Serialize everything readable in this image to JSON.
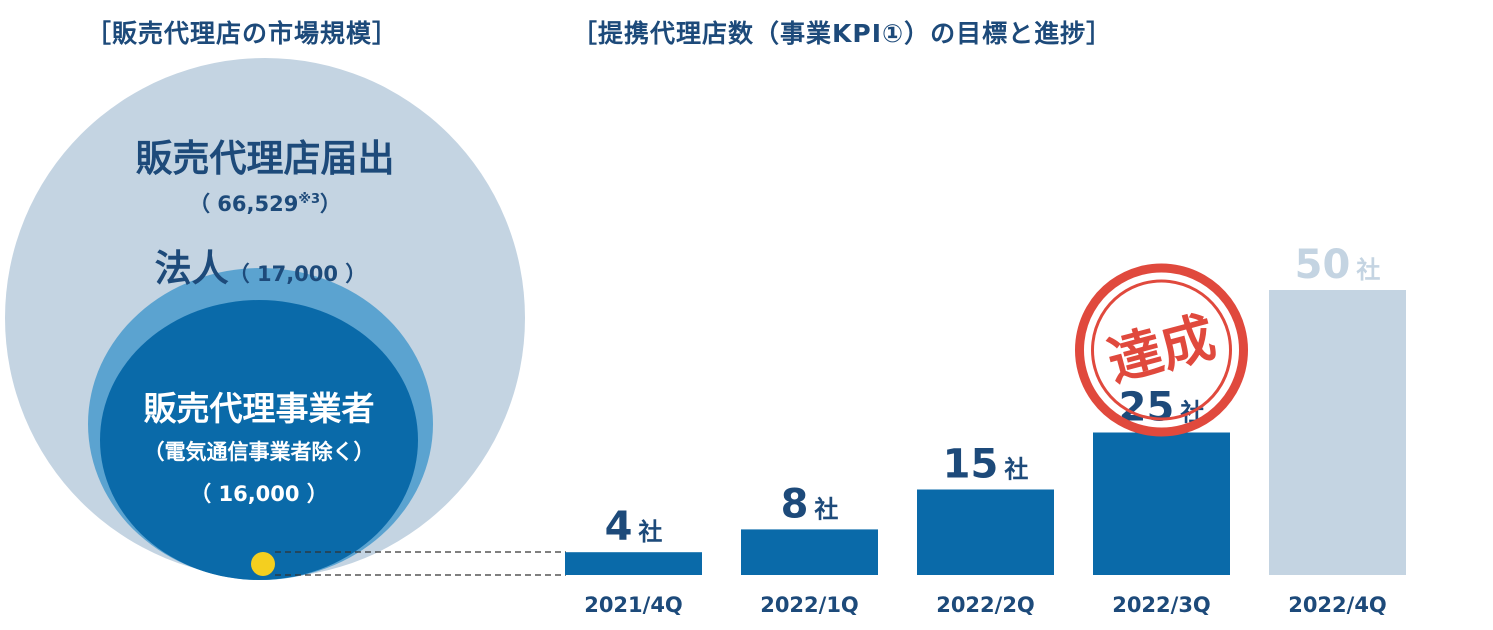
{
  "left_panel": {
    "title": "［販売代理店の市場規模］",
    "outer_circle": {
      "label": "販売代理店届出",
      "value": "（ 66,529",
      "note": "※3",
      "value_close": "）"
    },
    "mid_circle": {
      "label": "法人",
      "value": "（ 17,000 ）"
    },
    "inner_circle": {
      "label": "販売代理事業者",
      "sub": "（電気通信事業者除く）",
      "value": "（ 16,000 ）"
    }
  },
  "colors": {
    "bar_actual": "#0a6aa9",
    "bar_target": "#c4d4e2",
    "label_actual": "#1d4a7a",
    "label_target": "#c4d4e2",
    "stamp": "#e0493d",
    "marker": "#f4cf1f"
  },
  "chart_data": {
    "type": "bar",
    "title": "［提携代理店数（事業KPI①）の目標と進捗］",
    "categories": [
      "2021/4Q",
      "2022/1Q",
      "2022/2Q",
      "2022/3Q",
      "2022/4Q"
    ],
    "values": [
      4,
      8,
      15,
      25,
      50
    ],
    "unit": "社",
    "status": [
      "actual",
      "actual",
      "actual",
      "actual",
      "target"
    ],
    "ylim": [
      0,
      50
    ],
    "grid": false,
    "annotations": [
      {
        "category": "2022/3Q",
        "text": "達成"
      }
    ]
  }
}
